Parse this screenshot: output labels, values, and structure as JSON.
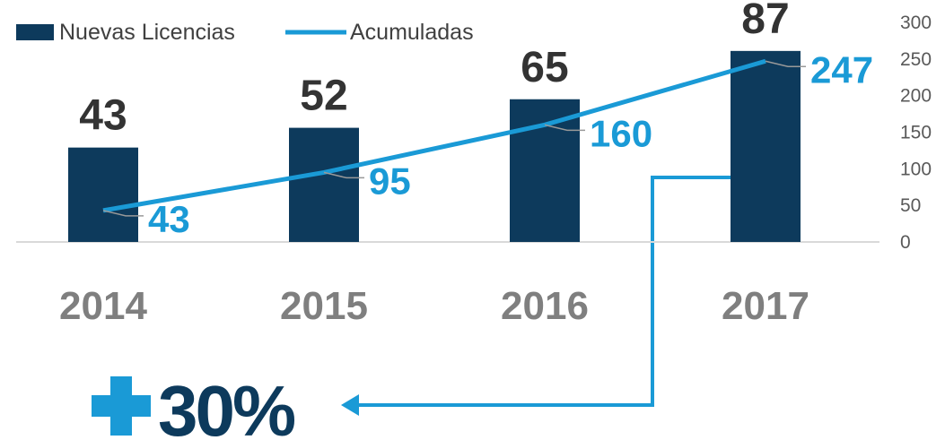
{
  "chart_data": {
    "type": "bar_line",
    "categories": [
      "2014",
      "2015",
      "2016",
      "2017"
    ],
    "series": [
      {
        "name": "Nuevas Licencias",
        "type": "bar",
        "color": "#0d3a5c",
        "values": [
          43,
          52,
          65,
          87
        ]
      },
      {
        "name": "Acumuladas",
        "type": "line",
        "axis": "y2",
        "color": "#1a9ad6",
        "values": [
          43,
          95,
          160,
          247
        ]
      }
    ],
    "ylim": [
      0,
      100
    ],
    "y2lim": [
      0,
      300
    ],
    "y2ticks": [
      0,
      50,
      100,
      150,
      200,
      250,
      300
    ],
    "legend": "top-left",
    "annotation": "30%"
  }
}
